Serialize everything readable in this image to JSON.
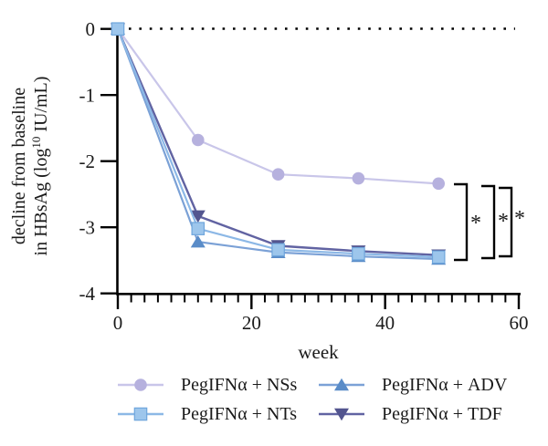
{
  "chart_data": {
    "type": "line",
    "title": "",
    "xlabel": "week",
    "ylabel_line1": "decline from baseline",
    "ylabel_line2_prefix": "in HBsAg (log",
    "ylabel_superscript": "10",
    "ylabel_line2_suffix": " IU/mL)",
    "xlim": [
      0,
      60
    ],
    "ylim": [
      -4,
      0
    ],
    "xticks_major": [
      0,
      20,
      40,
      60
    ],
    "xtick_minor_step": 2,
    "yticks": [
      0,
      -1,
      -2,
      -3,
      -4
    ],
    "x": [
      0,
      12,
      24,
      36,
      48
    ],
    "series": [
      {
        "name": "PegIFNα + NSs",
        "marker": "circle",
        "line_color": "#c9c6e9",
        "marker_color": "#b6b1de",
        "values": [
          0,
          -1.68,
          -2.2,
          -2.26,
          -2.34
        ]
      },
      {
        "name": "PegIFNα + NTs",
        "marker": "square",
        "line_color": "#8cb8e6",
        "marker_color": "#9dc6ec",
        "marker_edge": "#6fa6dc",
        "values": [
          0,
          -3.02,
          -3.34,
          -3.4,
          -3.45
        ]
      },
      {
        "name": "PegIFNα + ADV",
        "marker": "triangle-up",
        "line_color": "#7ba1d6",
        "marker_color": "#5a8cc8",
        "values": [
          0,
          -3.22,
          -3.38,
          -3.44,
          -3.48
        ]
      },
      {
        "name": "PegIFNα + TDF",
        "marker": "triangle-down",
        "line_color": "#6163a2",
        "marker_color": "#53558f",
        "values": [
          0,
          -2.83,
          -3.28,
          -3.36,
          -3.42
        ]
      }
    ],
    "reference_line": {
      "y": 0,
      "style": "dotted",
      "color": "#000000"
    },
    "significance_brackets": [
      {
        "label": "*"
      },
      {
        "label": "*"
      },
      {
        "label": "*"
      }
    ],
    "grid": "off",
    "legend_position": "bottom"
  },
  "legend": {
    "items": [
      {
        "label": "PegIFNα + NSs"
      },
      {
        "label": "PegIFNα + NTs"
      },
      {
        "label": "PegIFNα + ADV"
      },
      {
        "label": "PegIFNα + TDF"
      }
    ]
  },
  "colors": {
    "text": "#1a1a1a",
    "axis": "#000000"
  }
}
